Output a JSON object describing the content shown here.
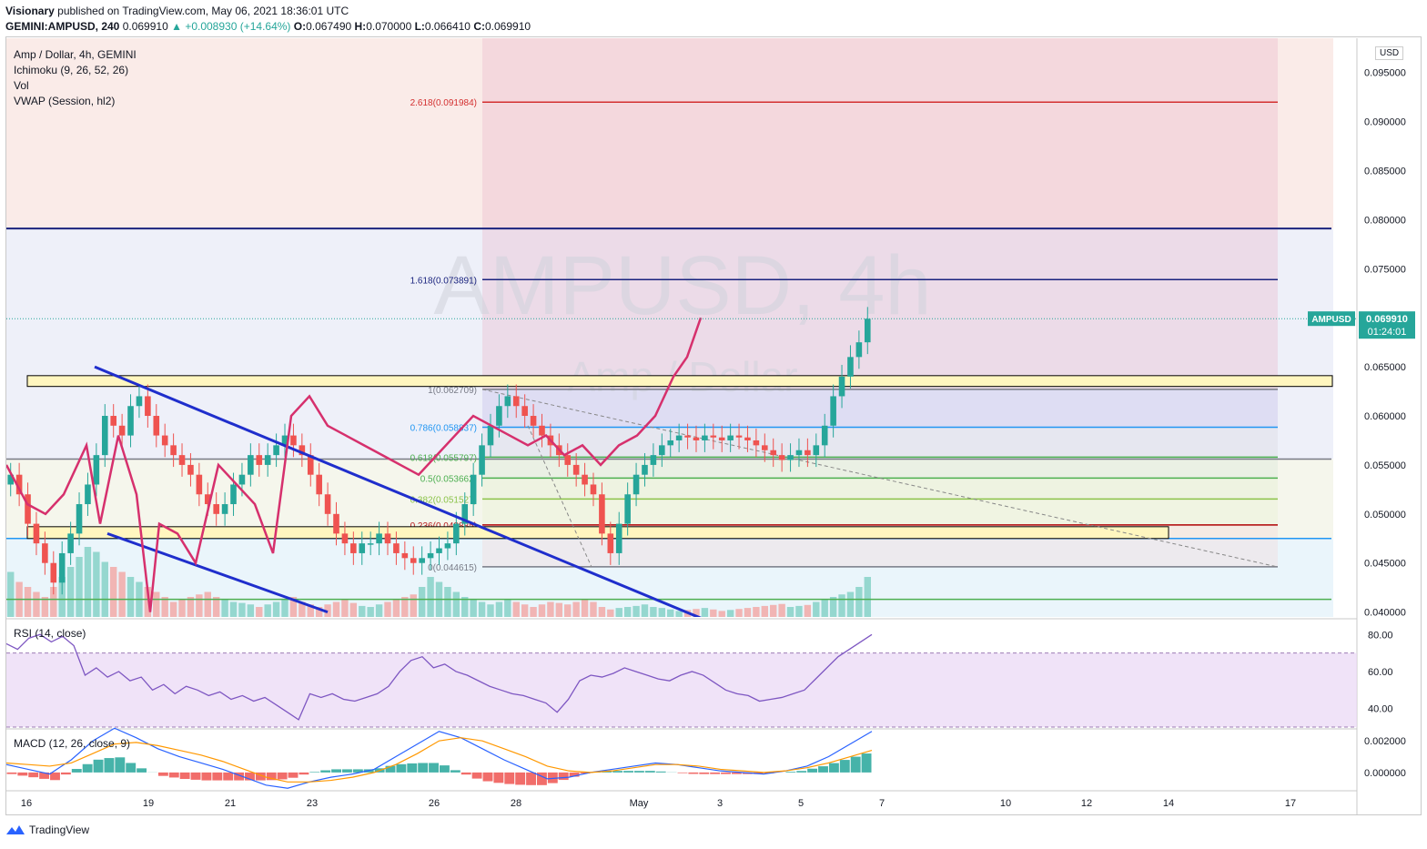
{
  "header": {
    "publisher": "Visionary",
    "published_text": "published on TradingView.com, May 06, 2021 18:36:01 UTC",
    "symbol_line": "GEMINI:AMPUSD, 240",
    "last": "0.069910",
    "change": "▲ +0.008930 (+14.64%)",
    "o_label": "O:",
    "o": "0.067490",
    "h_label": "H:",
    "h": "0.070000",
    "l_label": "L:",
    "l": "0.066410",
    "c_label": "C:",
    "c": "0.069910"
  },
  "legend": {
    "title": "Amp / Dollar, 4h, GEMINI",
    "ichimoku": "Ichimoku (9, 26, 52, 26)",
    "vol": "Vol",
    "vwap": "VWAP (Session, hl2)",
    "rsi": "RSI (14, close)",
    "macd": "MACD (12, 26, close, 9)"
  },
  "watermark": {
    "main": "AMPUSD, 4h",
    "sub": "Amp / Dollar"
  },
  "currency_button": "USD",
  "price_tag": {
    "symbol": "AMPUSD",
    "price": "0.069910",
    "countdown": "01:24:01"
  },
  "footer": {
    "brand": "TradingView"
  },
  "colors": {
    "up": "#26a69a",
    "down": "#ef5350",
    "trendline": "#1f2ecc",
    "pink_line": "#d6306d",
    "fib_zero": "#787b86",
    "fib_0786": "#2196f3",
    "fib_0618": "#4caf50",
    "fib_05": "#4caf50",
    "fib_0382": "#8bc34a",
    "fib_0236": "#b71c1c",
    "fib_1618": "#1a237e",
    "fib_2618": "#d32f2f",
    "rsi_line": "#7e57c2",
    "macd_line": "#2962ff",
    "signal_line": "#ff9800"
  },
  "chart_data": [
    {
      "type": "candlestick",
      "title": "Amp / Dollar, 4h, GEMINI",
      "x_ticks": [
        "16",
        "19",
        "21",
        "23",
        "26",
        "28",
        "May",
        "3",
        "5",
        "7",
        "10",
        "12",
        "14",
        "17"
      ],
      "y_ticks": [
        "0.095000",
        "0.090000",
        "0.085000",
        "0.080000",
        "0.075000",
        "0.065000",
        "0.060000",
        "0.055000",
        "0.050000",
        "0.045000",
        "0.040000"
      ],
      "ylim": [
        0.0395,
        0.0985
      ],
      "fib_levels": [
        {
          "label": "2.618(0.091984)",
          "value": 0.091984
        },
        {
          "label": "1.618(0.073891)",
          "value": 0.073891
        },
        {
          "label": "1(0.062709)",
          "value": 0.062709
        },
        {
          "label": "0.786(0.058837)",
          "value": 0.058837
        },
        {
          "label": "0.618(0.055797)",
          "value": 0.055797
        },
        {
          "label": "0.5(0.053662)",
          "value": 0.053662
        },
        {
          "label": "0.382(0.051527)",
          "value": 0.051527
        },
        {
          "label": "0.236(0.048885)",
          "value": 0.048885
        },
        {
          "label": "0(0.044615)",
          "value": 0.044615
        }
      ],
      "horizontal_lines": [
        0.0791,
        0.0556,
        0.0475,
        0.0413
      ],
      "zones": [
        [
          0.063,
          0.0641
        ],
        [
          0.0475,
          0.0487
        ]
      ],
      "close": [
        0.054,
        0.052,
        0.049,
        0.047,
        0.045,
        0.043,
        0.046,
        0.048,
        0.051,
        0.053,
        0.056,
        0.06,
        0.059,
        0.058,
        0.061,
        0.062,
        0.06,
        0.058,
        0.057,
        0.056,
        0.055,
        0.054,
        0.052,
        0.051,
        0.05,
        0.051,
        0.053,
        0.054,
        0.056,
        0.055,
        0.056,
        0.057,
        0.058,
        0.057,
        0.056,
        0.054,
        0.052,
        0.05,
        0.048,
        0.047,
        0.046,
        0.047,
        0.047,
        0.048,
        0.047,
        0.046,
        0.0455,
        0.045,
        0.0455,
        0.046,
        0.0465,
        0.047,
        0.049,
        0.051,
        0.054,
        0.057,
        0.059,
        0.061,
        0.062,
        0.061,
        0.06,
        0.059,
        0.058,
        0.057,
        0.056,
        0.055,
        0.054,
        0.053,
        0.052,
        0.048,
        0.046,
        0.049,
        0.052,
        0.054,
        0.055,
        0.056,
        0.057,
        0.0575,
        0.058,
        0.0578,
        0.0575,
        0.058,
        0.0578,
        0.0575,
        0.058,
        0.0578,
        0.0575,
        0.057,
        0.0565,
        0.056,
        0.0555,
        0.056,
        0.0565,
        0.056,
        0.057,
        0.059,
        0.062,
        0.064,
        0.066,
        0.0675,
        0.0699
      ],
      "volume": [
        90,
        70,
        60,
        50,
        40,
        60,
        80,
        100,
        120,
        140,
        130,
        110,
        100,
        90,
        80,
        70,
        60,
        50,
        40,
        30,
        35,
        40,
        45,
        50,
        40,
        35,
        30,
        28,
        25,
        20,
        25,
        30,
        35,
        40,
        30,
        25,
        20,
        25,
        30,
        35,
        28,
        22,
        20,
        25,
        30,
        35,
        40,
        45,
        60,
        80,
        70,
        60,
        50,
        40,
        35,
        30,
        25,
        30,
        35,
        30,
        25,
        20,
        25,
        30,
        28,
        25,
        30,
        35,
        30,
        20,
        15,
        18,
        20,
        22,
        25,
        20,
        18,
        15,
        12,
        14,
        16,
        18,
        15,
        12,
        14,
        16,
        18,
        20,
        22,
        24,
        26,
        20,
        22,
        24,
        30,
        35,
        40,
        45,
        50,
        60,
        80
      ]
    },
    {
      "type": "line",
      "title": "RSI (14, close)",
      "y_ticks": [
        "80.00",
        "60.00",
        "40.00"
      ],
      "ylim": [
        30,
        88
      ],
      "band": [
        30,
        70
      ],
      "values": [
        75,
        72,
        78,
        80,
        76,
        79,
        74,
        58,
        62,
        57,
        60,
        55,
        57,
        50,
        53,
        48,
        52,
        50,
        47,
        49,
        45,
        47,
        44,
        46,
        42,
        38,
        34,
        48,
        46,
        48,
        45,
        44,
        46,
        48,
        52,
        60,
        66,
        68,
        62,
        64,
        60,
        58,
        55,
        52,
        50,
        48,
        47,
        45,
        43,
        38,
        45,
        55,
        58,
        57,
        59,
        62,
        60,
        58,
        56,
        55,
        58,
        60,
        58,
        54,
        50,
        48,
        47,
        44,
        45,
        46,
        48,
        50,
        56,
        62,
        68,
        72,
        76,
        80
      ]
    },
    {
      "type": "line",
      "title": "MACD (12, 26, close, 9)",
      "y_ticks": [
        "0.002000",
        "0.000000"
      ],
      "ylim": [
        -0.0011,
        0.0027
      ],
      "macd": [
        0.0005,
        0.0002,
        -0.0001,
        0.0008,
        0.002,
        0.0028,
        0.0022,
        0.0015,
        0.001,
        0.0006,
        0.0002,
        -0.0003,
        -0.0008,
        -0.001,
        -0.0006,
        -0.0003,
        -0.0001,
        0.0002,
        0.001,
        0.0018,
        0.0026,
        0.0022,
        0.0015,
        0.0008,
        0.0002,
        -0.0004,
        -0.0003,
        0.0,
        0.0002,
        0.0004,
        0.0006,
        0.0005,
        0.0003,
        0.0001,
        0.0,
        -0.0001,
        0.0001,
        0.0004,
        0.001,
        0.0018,
        0.0026
      ],
      "signal": [
        0.0006,
        0.0005,
        0.0004,
        0.0006,
        0.0012,
        0.0018,
        0.0019,
        0.0017,
        0.0014,
        0.0011,
        0.0007,
        0.0002,
        -0.0003,
        -0.0006,
        -0.0006,
        -0.0005,
        -0.0003,
        0.0,
        0.0005,
        0.0012,
        0.002,
        0.0022,
        0.002,
        0.0015,
        0.001,
        0.0004,
        0.0001,
        0.0,
        0.0001,
        0.0003,
        0.0005,
        0.0005,
        0.0004,
        0.0002,
        0.0001,
        0.0,
        0.0001,
        0.0003,
        0.0006,
        0.001,
        0.0014
      ]
    }
  ]
}
